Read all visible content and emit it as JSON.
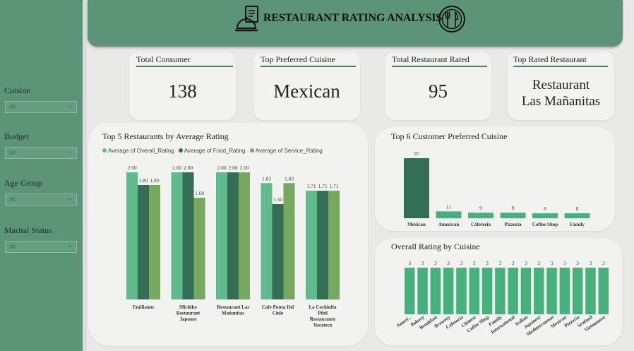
{
  "header": {
    "title": "RESTAURANT RATING ANALYSIS",
    "icon_left": "restaurant-menu-icon",
    "icon_right": "plate-fork-knife-icon"
  },
  "sidebar": {
    "filters": [
      {
        "label": "Cuisine",
        "value": "All"
      },
      {
        "label": "Budget",
        "value": "All"
      },
      {
        "label": "Age Group",
        "value": "All"
      },
      {
        "label": "Marital Status",
        "value": "All"
      }
    ]
  },
  "kpis": [
    {
      "title": "Total Consumer",
      "value": "138"
    },
    {
      "title": "Top Preferred Cuisine",
      "value": "Mexican"
    },
    {
      "title": "Total Restaurant Rated",
      "value": "95"
    },
    {
      "title": "Top Rated Restaurant",
      "value_line1": "Restaurant",
      "value_line2": "Las Mañanitas"
    }
  ],
  "colors": {
    "overall": "#5fbb8d",
    "food": "#346e55",
    "service": "#78a75f",
    "single": "#46b17c",
    "mexican": "#346e55",
    "sidebar": "#5c9478"
  },
  "chart_data": [
    {
      "type": "bar",
      "title": "Top 5 Restaurants by Average Rating",
      "categories": [
        "Emilianos",
        "Michiko Restaurant Japones",
        "Restaurant Las Mañanitas",
        "Cafe Punta Del Cielo",
        "La Cochinita Pibil Restaurante Yucateco"
      ],
      "series": [
        {
          "name": "Average of Overall_Rating",
          "values": [
            2.0,
            2.0,
            2.0,
            1.83,
            1.71
          ],
          "labels": [
            "2.00",
            "2.00",
            "2.00",
            "1.83",
            "1.71"
          ]
        },
        {
          "name": "Average of Food_Rating",
          "values": [
            1.8,
            2.0,
            2.0,
            1.5,
            1.71
          ],
          "labels": [
            "1.80",
            "2.00",
            "2.00",
            "1.50",
            "1.71"
          ]
        },
        {
          "name": "Average of Service_Rating",
          "values": [
            1.8,
            1.6,
            2.0,
            1.83,
            1.71
          ],
          "labels": [
            "1.80",
            "1.60",
            "2.00",
            "1.83",
            "1.71"
          ]
        }
      ],
      "ylim": [
        0,
        2
      ]
    },
    {
      "type": "bar",
      "title": "Top 6 Customer Preferred Cuisine",
      "categories": [
        "Mexican",
        "American",
        "Cafeteria",
        "Pizzeria",
        "Coffee Shop",
        "Family"
      ],
      "values": [
        97,
        11,
        9,
        9,
        8,
        8
      ],
      "ylim": [
        0,
        97
      ]
    },
    {
      "type": "bar",
      "title": "Overall Rating by Cuisine",
      "categories": [
        "Ameri...",
        "Bakery",
        "Breakfast",
        "Brewery",
        "Cafeteria",
        "Chinese",
        "Coffee Shop",
        "Family",
        "International",
        "Italian",
        "Japanese",
        "Mediterranean",
        "Mexican",
        "Pizzeria",
        "Seafood",
        "Vietnamese"
      ],
      "values": [
        3,
        3,
        3,
        3,
        3,
        3,
        3,
        3,
        3,
        3,
        3,
        3,
        3,
        3,
        3,
        3
      ],
      "ylim": [
        0,
        3
      ]
    }
  ]
}
